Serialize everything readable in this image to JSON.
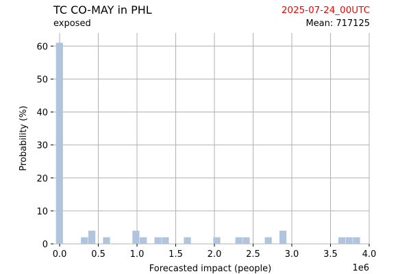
{
  "header": {
    "title": "TC CO-MAY in PHL",
    "subtitle": "exposed",
    "timestamp": "2025-07-24_00UTC",
    "mean_label": "Mean: 717125"
  },
  "colors": {
    "bar": "#b0c4de",
    "timestamp": "#ff0000",
    "grid": "#b0b0b0"
  },
  "chart_data": {
    "type": "bar",
    "title": "TC CO-MAY in PHL",
    "xlabel": "Forecasted impact (people)",
    "ylabel": "Probability (%)",
    "x_offset_label": "1e6",
    "x_scale": 1000000,
    "xlim": [
      -0.08,
      4.0
    ],
    "ylim": [
      0,
      64
    ],
    "x_ticks": [
      0.0,
      0.5,
      1.0,
      1.5,
      2.0,
      2.5,
      3.0,
      3.5,
      4.0
    ],
    "x_tick_labels": [
      "0.0",
      "0.5",
      "1.0",
      "1.5",
      "2.0",
      "2.5",
      "3.0",
      "3.5",
      "4.0"
    ],
    "y_ticks": [
      0,
      10,
      20,
      30,
      40,
      50,
      60
    ],
    "y_tick_labels": [
      "0",
      "10",
      "20",
      "30",
      "40",
      "50",
      "60"
    ],
    "grid": true,
    "bin_width": 0.095,
    "bins": [
      {
        "x": 0.0,
        "value": 61
      },
      {
        "x": 0.323,
        "value": 2
      },
      {
        "x": 0.418,
        "value": 4
      },
      {
        "x": 0.608,
        "value": 2
      },
      {
        "x": 0.988,
        "value": 4
      },
      {
        "x": 1.083,
        "value": 2
      },
      {
        "x": 1.273,
        "value": 2
      },
      {
        "x": 1.368,
        "value": 2
      },
      {
        "x": 1.653,
        "value": 2
      },
      {
        "x": 2.033,
        "value": 2
      },
      {
        "x": 2.318,
        "value": 2
      },
      {
        "x": 2.413,
        "value": 2
      },
      {
        "x": 2.698,
        "value": 2
      },
      {
        "x": 2.888,
        "value": 4
      },
      {
        "x": 3.648,
        "value": 2
      },
      {
        "x": 3.743,
        "value": 2
      },
      {
        "x": 3.838,
        "value": 2
      }
    ]
  }
}
